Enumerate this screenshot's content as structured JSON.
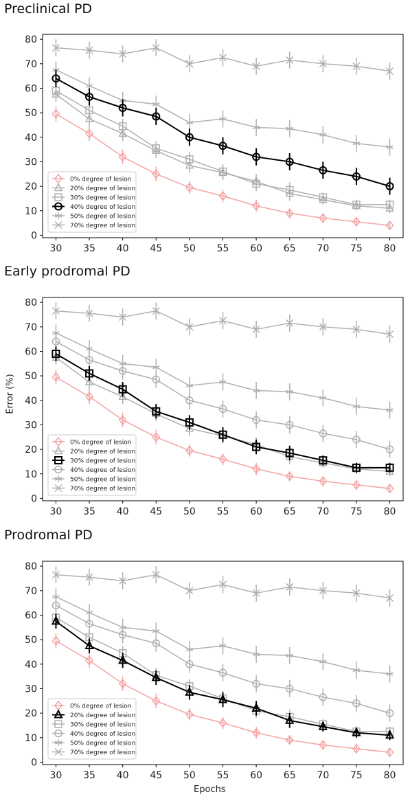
{
  "y_axis_label": "Error (%)",
  "x_axis_label": "Epochs",
  "legend_labels": [
    "0% degree of lesion",
    "20% degree of lesion",
    "30% degree of lesion",
    "40% degree of lesion",
    "50% degree of lesion",
    "70% degree of lesion"
  ],
  "colors": {
    "lesion_0": "#f4a3a3",
    "highlight": "#000000",
    "other": "#b0b0b0"
  },
  "chart_data": [
    {
      "type": "line",
      "title": "Preclinical PD",
      "highlight": "40% degree of lesion",
      "legend": "lower-left",
      "grid": false,
      "xlim": [
        28,
        82
      ],
      "ylim": [
        -1,
        82
      ],
      "x": [
        30,
        35,
        40,
        45,
        50,
        55,
        60,
        65,
        70,
        75,
        80
      ],
      "xticks": [
        30,
        35,
        40,
        45,
        50,
        55,
        60,
        65,
        70,
        75,
        80
      ],
      "yticks": [
        0,
        10,
        20,
        30,
        40,
        50,
        60,
        70,
        80
      ],
      "series": [
        {
          "name": "0% degree of lesion",
          "marker": "diamond",
          "values": [
            49.5,
            41.5,
            32,
            25,
            19.5,
            16,
            12,
            9,
            7,
            5.5,
            4
          ],
          "err": [
            3,
            3,
            3,
            3,
            2.5,
            2.5,
            2.5,
            2,
            2,
            2,
            1.5
          ]
        },
        {
          "name": "20% degree of lesion",
          "marker": "triangle",
          "values": [
            57.5,
            47.5,
            41.5,
            34.5,
            28.5,
            25.5,
            22,
            17,
            14.5,
            12,
            11
          ],
          "err": [
            3,
            3,
            3,
            3,
            3,
            3,
            3,
            3,
            2,
            2,
            2
          ]
        },
        {
          "name": "30% degree of lesion",
          "marker": "square",
          "values": [
            59,
            51,
            44.5,
            35.5,
            31,
            26,
            21,
            18.5,
            15.5,
            12.5,
            12.5
          ],
          "err": [
            3,
            3,
            3,
            3,
            3,
            3,
            3,
            3,
            2,
            2,
            2
          ]
        },
        {
          "name": "40% degree of lesion",
          "marker": "circle",
          "values": [
            64,
            56.5,
            52,
            48.5,
            40,
            36.5,
            32,
            30,
            26.5,
            24,
            20
          ],
          "err": [
            3.5,
            3.5,
            3.5,
            3.5,
            3.5,
            3.5,
            3.5,
            3.5,
            3.5,
            3.5,
            3.5
          ]
        },
        {
          "name": "50% degree of lesion",
          "marker": "star",
          "values": [
            67.5,
            61,
            55,
            53.5,
            46,
            47.5,
            44,
            43.5,
            41,
            37.5,
            36
          ],
          "err": [
            3.5,
            3.5,
            3.5,
            3.5,
            3.5,
            3.5,
            3.5,
            3.5,
            3.5,
            3.5,
            3.5
          ]
        },
        {
          "name": "70% degree of lesion",
          "marker": "x",
          "values": [
            76.5,
            75.5,
            74,
            76.5,
            70,
            72.5,
            69,
            71.5,
            70,
            69,
            67
          ],
          "err": [
            3.5,
            3.5,
            3.5,
            3.5,
            3.5,
            3.5,
            3.5,
            3.5,
            3.5,
            3.5,
            3.5
          ]
        }
      ]
    },
    {
      "type": "line",
      "title": "Early prodromal PD",
      "highlight": "30% degree of lesion",
      "legend": "lower-left",
      "grid": false,
      "xlim": [
        28,
        82
      ],
      "ylim": [
        -1,
        82
      ],
      "x": [
        30,
        35,
        40,
        45,
        50,
        55,
        60,
        65,
        70,
        75,
        80
      ],
      "xticks": [
        30,
        35,
        40,
        45,
        50,
        55,
        60,
        65,
        70,
        75,
        80
      ],
      "yticks": [
        0,
        10,
        20,
        30,
        40,
        50,
        60,
        70,
        80
      ],
      "series": [
        {
          "name": "0% degree of lesion",
          "marker": "diamond",
          "values": [
            49.5,
            41.5,
            32,
            25,
            19.5,
            16,
            12,
            9,
            7,
            5.5,
            4
          ],
          "err": [
            3,
            3,
            3,
            3,
            2.5,
            2.5,
            2.5,
            2,
            2,
            2,
            1.5
          ]
        },
        {
          "name": "20% degree of lesion",
          "marker": "triangle",
          "values": [
            57.5,
            47.5,
            41.5,
            34.5,
            28.5,
            25.5,
            22,
            17,
            14.5,
            12,
            11
          ],
          "err": [
            3,
            3,
            3,
            3,
            3,
            3,
            3,
            3,
            2,
            2,
            2
          ]
        },
        {
          "name": "30% degree of lesion",
          "marker": "square",
          "values": [
            59,
            51,
            44.5,
            35.5,
            31,
            26,
            21,
            18.5,
            15.5,
            12.5,
            12.5
          ],
          "err": [
            3,
            3,
            3,
            3,
            3,
            3,
            3,
            3,
            2,
            2,
            2
          ]
        },
        {
          "name": "40% degree of lesion",
          "marker": "circle",
          "values": [
            64,
            56.5,
            52,
            48.5,
            40,
            36.5,
            32,
            30,
            26.5,
            24,
            20
          ],
          "err": [
            3.5,
            3.5,
            3.5,
            3.5,
            3.5,
            3.5,
            3.5,
            3.5,
            3.5,
            3.5,
            3.5
          ]
        },
        {
          "name": "50% degree of lesion",
          "marker": "star",
          "values": [
            67.5,
            61,
            55,
            53.5,
            46,
            47.5,
            44,
            43.5,
            41,
            37.5,
            36
          ],
          "err": [
            3.5,
            3.5,
            3.5,
            3.5,
            3.5,
            3.5,
            3.5,
            3.5,
            3.5,
            3.5,
            3.5
          ]
        },
        {
          "name": "70% degree of lesion",
          "marker": "x",
          "values": [
            76.5,
            75.5,
            74,
            76.5,
            70,
            72.5,
            69,
            71.5,
            70,
            69,
            67
          ],
          "err": [
            3.5,
            3.5,
            3.5,
            3.5,
            3.5,
            3.5,
            3.5,
            3.5,
            3.5,
            3.5,
            3.5
          ]
        }
      ]
    },
    {
      "type": "line",
      "title": "Prodromal PD",
      "highlight": "20% degree of lesion",
      "legend": "lower-left",
      "grid": false,
      "xlim": [
        28,
        82
      ],
      "ylim": [
        -1,
        82
      ],
      "x": [
        30,
        35,
        40,
        45,
        50,
        55,
        60,
        65,
        70,
        75,
        80
      ],
      "xticks": [
        30,
        35,
        40,
        45,
        50,
        55,
        60,
        65,
        70,
        75,
        80
      ],
      "yticks": [
        0,
        10,
        20,
        30,
        40,
        50,
        60,
        70,
        80
      ],
      "series": [
        {
          "name": "0% degree of lesion",
          "marker": "diamond",
          "values": [
            49.5,
            41.5,
            32,
            25,
            19.5,
            16,
            12,
            9,
            7,
            5.5,
            4
          ],
          "err": [
            3,
            3,
            3,
            3,
            2.5,
            2.5,
            2.5,
            2,
            2,
            2,
            1.5
          ]
        },
        {
          "name": "20% degree of lesion",
          "marker": "triangle",
          "values": [
            57.5,
            47.5,
            41.5,
            34.5,
            28.5,
            25.5,
            22,
            17,
            14.5,
            12,
            11
          ],
          "err": [
            3,
            3,
            3,
            3,
            3,
            3,
            3,
            3,
            2,
            2,
            2
          ]
        },
        {
          "name": "30% degree of lesion",
          "marker": "square",
          "values": [
            59,
            51,
            44.5,
            35.5,
            31,
            26,
            21,
            18.5,
            15.5,
            12.5,
            12.5
          ],
          "err": [
            3,
            3,
            3,
            3,
            3,
            3,
            3,
            3,
            2,
            2,
            2
          ]
        },
        {
          "name": "40% degree of lesion",
          "marker": "circle",
          "values": [
            64,
            56.5,
            52,
            48.5,
            40,
            36.5,
            32,
            30,
            26.5,
            24,
            20
          ],
          "err": [
            3.5,
            3.5,
            3.5,
            3.5,
            3.5,
            3.5,
            3.5,
            3.5,
            3.5,
            3.5,
            3.5
          ]
        },
        {
          "name": "50% degree of lesion",
          "marker": "star",
          "values": [
            67.5,
            61,
            55,
            53.5,
            46,
            47.5,
            44,
            43.5,
            41,
            37.5,
            36
          ],
          "err": [
            3.5,
            3.5,
            3.5,
            3.5,
            3.5,
            3.5,
            3.5,
            3.5,
            3.5,
            3.5,
            3.5
          ]
        },
        {
          "name": "70% degree of lesion",
          "marker": "x",
          "values": [
            76.5,
            75.5,
            74,
            76.5,
            70,
            72.5,
            69,
            71.5,
            70,
            69,
            67
          ],
          "err": [
            3.5,
            3.5,
            3.5,
            3.5,
            3.5,
            3.5,
            3.5,
            3.5,
            3.5,
            3.5,
            3.5
          ]
        }
      ]
    }
  ]
}
